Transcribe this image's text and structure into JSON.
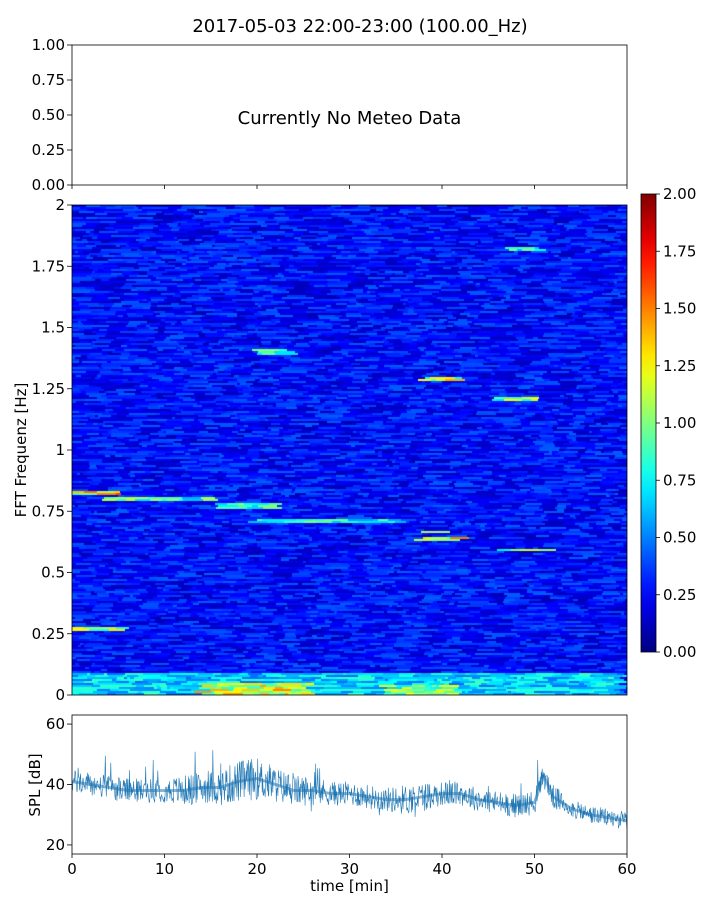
{
  "title": "2017-05-03 22:00-23:00 (100.00_Hz)",
  "chart_data": [
    {
      "type": "line",
      "panel": "meteo",
      "message": "Currently No Meteo Data",
      "ylim": [
        0,
        1
      ],
      "yticks": [
        "0.00",
        "0.25",
        "0.50",
        "0.75",
        "1.00"
      ],
      "series": []
    },
    {
      "type": "heatmap",
      "panel": "spectrogram",
      "ylabel": "FFT Frequenz [Hz]",
      "xlim": [
        0,
        60
      ],
      "ylim": [
        0,
        2
      ],
      "yticks": [
        "0",
        "0.25",
        "0.5",
        "0.75",
        "1",
        "1.25",
        "1.5",
        "1.75",
        "2"
      ],
      "colormap": "jet",
      "colorbar": {
        "range": [
          0,
          2
        ],
        "ticks": [
          "0.00",
          "0.25",
          "0.50",
          "0.75",
          "1.00",
          "1.25",
          "1.50",
          "1.75",
          "2.00"
        ]
      },
      "background_level": 0.3,
      "bands": [
        {
          "t": [
            0,
            6
          ],
          "f": [
            0.815,
            0.835
          ],
          "v": 1.3
        },
        {
          "t": [
            3,
            16
          ],
          "f": [
            0.795,
            0.812
          ],
          "v": 0.9
        },
        {
          "t": [
            16,
            22
          ],
          "f": [
            0.76,
            0.78
          ],
          "v": 0.85
        },
        {
          "t": [
            20,
            36
          ],
          "f": [
            0.7,
            0.722
          ],
          "v": 0.85
        },
        {
          "t": [
            37,
            41
          ],
          "f": [
            0.658,
            0.672
          ],
          "v": 0.9
        },
        {
          "t": [
            38,
            42
          ],
          "f": [
            0.628,
            0.648
          ],
          "v": 1.4
        },
        {
          "t": [
            46,
            52
          ],
          "f": [
            0.585,
            0.598
          ],
          "v": 1.0
        },
        {
          "t": [
            20,
            24
          ],
          "f": [
            1.39,
            1.415
          ],
          "v": 0.9
        },
        {
          "t": [
            38,
            42
          ],
          "f": [
            1.28,
            1.3
          ],
          "v": 1.15
        },
        {
          "t": [
            45,
            50
          ],
          "f": [
            1.2,
            1.215
          ],
          "v": 1.0
        },
        {
          "t": [
            47,
            51
          ],
          "f": [
            1.81,
            1.825
          ],
          "v": 0.8
        },
        {
          "t": [
            0,
            6
          ],
          "f": [
            0.265,
            0.28
          ],
          "v": 1.1
        },
        {
          "t": [
            0,
            60
          ],
          "f": [
            0.0,
            0.09
          ],
          "v": 0.7
        },
        {
          "t": [
            14,
            26
          ],
          "f": [
            0.0,
            0.05
          ],
          "v": 1.2
        },
        {
          "t": [
            34,
            42
          ],
          "f": [
            0.0,
            0.04
          ],
          "v": 1.0
        }
      ]
    },
    {
      "type": "line",
      "panel": "spl",
      "ylabel": "SPL [dB]",
      "xlabel": "time [min]",
      "xlim": [
        0,
        60
      ],
      "ylim": [
        17,
        63
      ],
      "xticks": [
        "0",
        "10",
        "20",
        "30",
        "40",
        "50",
        "60"
      ],
      "yticks": [
        "20",
        "40",
        "60"
      ],
      "color": "#1f77b4",
      "series": [
        {
          "x": [
            0,
            2,
            4,
            6,
            8,
            10,
            12,
            14,
            16,
            18,
            20,
            22,
            24,
            26,
            28,
            30,
            32,
            34,
            36,
            38,
            40,
            42,
            44,
            46,
            48,
            50,
            51,
            52,
            54,
            56,
            58,
            60
          ],
          "y": [
            41,
            40,
            39,
            38,
            38,
            38,
            38,
            39,
            39,
            41,
            42,
            40,
            38,
            38,
            37,
            37,
            36,
            35,
            35,
            36,
            37,
            37,
            35,
            34,
            33,
            34,
            43,
            36,
            32,
            30,
            29,
            28
          ],
          "spread": [
            4,
            4,
            4,
            4,
            4,
            4,
            5,
            5,
            6,
            7,
            7,
            6,
            5,
            5,
            4,
            4,
            4,
            4,
            5,
            5,
            4,
            4,
            4,
            4,
            4,
            4,
            4,
            4,
            3,
            3,
            3,
            3
          ]
        }
      ]
    }
  ]
}
